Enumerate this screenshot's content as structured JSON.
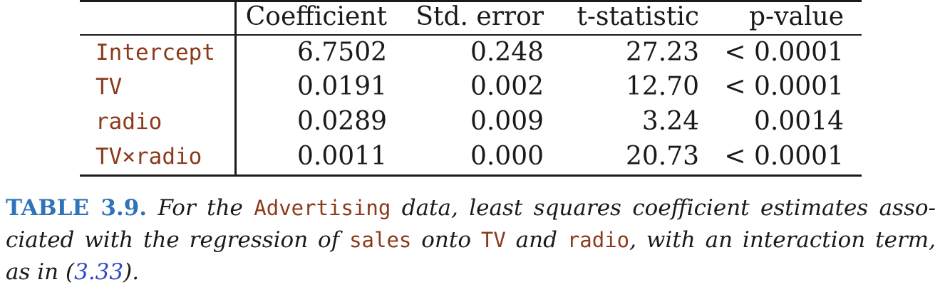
{
  "table": {
    "headers": [
      "",
      "Coefficient",
      "Std. error",
      "t-statistic",
      "p-value"
    ],
    "rows": [
      {
        "label": "Intercept",
        "coefficient": "6.7502",
        "std_error": "0.248",
        "t_statistic": "27.23",
        "p_value": "< 0.0001"
      },
      {
        "label": "TV",
        "coefficient": "0.0191",
        "std_error": "0.002",
        "t_statistic": "12.70",
        "p_value": "< 0.0001"
      },
      {
        "label": "radio",
        "coefficient": "0.0289",
        "std_error": "0.009",
        "t_statistic": "3.24",
        "p_value": "0.0014"
      },
      {
        "label": "TV×radio",
        "coefficient": "0.0011",
        "std_error": "0.000",
        "t_statistic": "20.73",
        "p_value": "< 0.0001"
      }
    ]
  },
  "caption": {
    "label": "TABLE 3.9.",
    "t1": "For the",
    "code_advertising": "Advertising",
    "t2": "data, least squares coefficient estimates asso-",
    "t3": "ciated with the regression of",
    "code_sales": "sales",
    "t4": "onto",
    "code_tv": "TV",
    "t5": "and",
    "code_radio": "radio",
    "t6": ", with an interaction term,",
    "t7": "as in",
    "ref_open": "(",
    "ref": "3.33",
    "ref_close": ")."
  },
  "colors": {
    "code": "#8b3a1a",
    "caption_label": "#2f73b8",
    "equation_ref": "#3046c8"
  }
}
